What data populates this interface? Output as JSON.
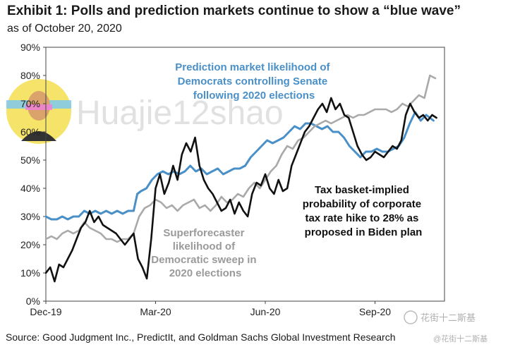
{
  "header": {
    "title": "Exhibit 1: Polls and prediction markets continue to show a “blue wave”",
    "subtitle": "as of October 20, 2020"
  },
  "footer": {
    "source": "Source: Good Judgment Inc., PredictIt, and Goldman Sachs Global Investment Research"
  },
  "watermark": {
    "text": "Huajie12shao",
    "corner_text": "花街十二斯基",
    "corner_sub": "@花街十二斯基"
  },
  "colors": {
    "prediction": "#4a90c8",
    "superforecaster": "#a9a9a9",
    "tax": "#111111",
    "axis": "#444444"
  },
  "chart_data": {
    "type": "line",
    "x_ticks": [
      {
        "label": "Dec-19",
        "month": 0
      },
      {
        "label": "Mar-20",
        "month": 3
      },
      {
        "label": "Jun-20",
        "month": 6
      },
      {
        "label": "Sep-20",
        "month": 9
      }
    ],
    "x_range_months": [
      0,
      10.9
    ],
    "ylim": [
      0,
      90
    ],
    "y_ticks": [
      "0%",
      "10%",
      "20%",
      "30%",
      "40%",
      "50%",
      "60%",
      "70%",
      "80%",
      "90%"
    ],
    "y_tick_values": [
      0,
      10,
      20,
      30,
      40,
      50,
      60,
      70,
      80,
      90
    ],
    "annotations": [
      {
        "series": "prediction",
        "lines": [
          "Prediction market likelihood of",
          "Democrats controlling Senate",
          "following 2020 elections"
        ]
      },
      {
        "series": "tax",
        "lines": [
          "Tax basket-implied",
          "probability of corporate",
          "tax rate hike to 28% as",
          "proposed in Biden plan"
        ]
      },
      {
        "series": "superforecaster",
        "lines": [
          "Superforecaster",
          "likelihood of",
          "Democratic sweep in",
          "2020 elections"
        ]
      }
    ],
    "series": [
      {
        "key": "prediction",
        "x": [
          0.0,
          0.15,
          0.3,
          0.45,
          0.6,
          0.75,
          0.9,
          1.05,
          1.2,
          1.35,
          1.5,
          1.65,
          1.8,
          1.95,
          2.1,
          2.25,
          2.4,
          2.5,
          2.6,
          2.75,
          2.9,
          3.05,
          3.2,
          3.35,
          3.5,
          3.65,
          3.8,
          3.95,
          4.1,
          4.25,
          4.4,
          4.55,
          4.7,
          4.85,
          5.0,
          5.15,
          5.3,
          5.45,
          5.6,
          5.75,
          5.9,
          6.05,
          6.2,
          6.35,
          6.5,
          6.65,
          6.8,
          6.95,
          7.1,
          7.25,
          7.4,
          7.55,
          7.7,
          7.85,
          8.0,
          8.15,
          8.3,
          8.45,
          8.6,
          8.75,
          8.9,
          9.05,
          9.2,
          9.35,
          9.5,
          9.65,
          9.8,
          9.95,
          10.1,
          10.25,
          10.4,
          10.6
        ],
        "values": [
          30,
          29,
          29,
          30,
          29,
          30,
          30,
          32,
          31,
          32,
          31,
          32,
          31,
          32,
          31,
          32,
          32,
          38,
          39,
          40,
          43,
          45,
          46,
          45,
          46,
          45,
          46,
          48,
          46,
          47,
          45,
          46,
          47,
          45,
          46,
          47,
          47,
          48,
          51,
          53,
          55,
          57,
          56,
          57,
          58,
          60,
          62,
          61,
          63,
          63,
          62,
          61,
          62,
          60,
          60,
          58,
          55,
          53,
          51,
          53,
          53,
          54,
          53,
          53,
          54,
          55,
          58,
          63,
          67,
          64,
          66,
          64
        ]
      },
      {
        "key": "superforecaster",
        "x": [
          0.0,
          0.15,
          0.3,
          0.45,
          0.6,
          0.75,
          0.9,
          1.05,
          1.2,
          1.35,
          1.5,
          1.65,
          1.8,
          1.95,
          2.1,
          2.25,
          2.4,
          2.55,
          2.7,
          2.85,
          3.0,
          3.15,
          3.3,
          3.45,
          3.6,
          3.75,
          3.9,
          4.05,
          4.2,
          4.35,
          4.5,
          4.65,
          4.8,
          4.95,
          5.1,
          5.25,
          5.4,
          5.55,
          5.7,
          5.85,
          6.0,
          6.15,
          6.3,
          6.45,
          6.6,
          6.75,
          6.9,
          7.05,
          7.2,
          7.35,
          7.5,
          7.65,
          7.8,
          7.95,
          8.1,
          8.25,
          8.4,
          8.55,
          8.7,
          8.85,
          9.0,
          9.15,
          9.3,
          9.45,
          9.6,
          9.75,
          9.9,
          10.05,
          10.2,
          10.35,
          10.5,
          10.65
        ],
        "values": [
          22,
          23,
          22,
          24,
          25,
          24,
          25,
          28,
          26,
          25,
          24,
          22,
          22,
          21,
          22,
          22,
          24,
          30,
          33,
          34,
          36,
          35,
          33,
          34,
          32,
          34,
          35,
          36,
          33,
          34,
          32,
          34,
          37,
          35,
          36,
          38,
          37,
          40,
          42,
          40,
          43,
          46,
          48,
          52,
          55,
          54,
          57,
          58,
          60,
          62,
          63,
          64,
          63,
          64,
          65,
          66,
          65,
          66,
          66,
          67,
          68,
          68,
          68,
          67,
          68,
          70,
          69,
          71,
          73,
          72,
          80,
          79
        ]
      },
      {
        "key": "tax",
        "x": [
          0.0,
          0.12,
          0.24,
          0.36,
          0.48,
          0.6,
          0.72,
          0.84,
          0.96,
          1.08,
          1.2,
          1.32,
          1.44,
          1.56,
          1.68,
          1.8,
          1.92,
          2.04,
          2.16,
          2.28,
          2.4,
          2.52,
          2.64,
          2.76,
          2.88,
          3.0,
          3.12,
          3.24,
          3.36,
          3.48,
          3.6,
          3.72,
          3.84,
          3.96,
          4.08,
          4.2,
          4.32,
          4.44,
          4.56,
          4.68,
          4.8,
          4.92,
          5.04,
          5.16,
          5.28,
          5.4,
          5.52,
          5.64,
          5.76,
          5.88,
          6.0,
          6.12,
          6.24,
          6.36,
          6.48,
          6.6,
          6.72,
          6.84,
          6.96,
          7.08,
          7.2,
          7.32,
          7.44,
          7.56,
          7.68,
          7.8,
          7.92,
          8.04,
          8.16,
          8.28,
          8.4,
          8.52,
          8.64,
          8.76,
          8.88,
          9.0,
          9.12,
          9.24,
          9.36,
          9.48,
          9.6,
          9.72,
          9.84,
          9.96,
          10.08,
          10.2,
          10.32,
          10.44,
          10.56,
          10.68
        ],
        "values": [
          10,
          12,
          7,
          13,
          12,
          15,
          18,
          22,
          26,
          28,
          32,
          28,
          30,
          27,
          26,
          25,
          24,
          22,
          20,
          22,
          24,
          15,
          12,
          8,
          22,
          40,
          45,
          38,
          42,
          48,
          43,
          52,
          56,
          53,
          58,
          48,
          43,
          40,
          38,
          35,
          32,
          33,
          36,
          31,
          35,
          32,
          30,
          38,
          42,
          41,
          45,
          40,
          38,
          43,
          39,
          40,
          48,
          52,
          56,
          60,
          62,
          65,
          68,
          70,
          67,
          72,
          68,
          70,
          66,
          65,
          60,
          55,
          52,
          50,
          51,
          53,
          52,
          51,
          53,
          55,
          54,
          57,
          66,
          70,
          67,
          65,
          66,
          64,
          66,
          65
        ]
      }
    ]
  }
}
